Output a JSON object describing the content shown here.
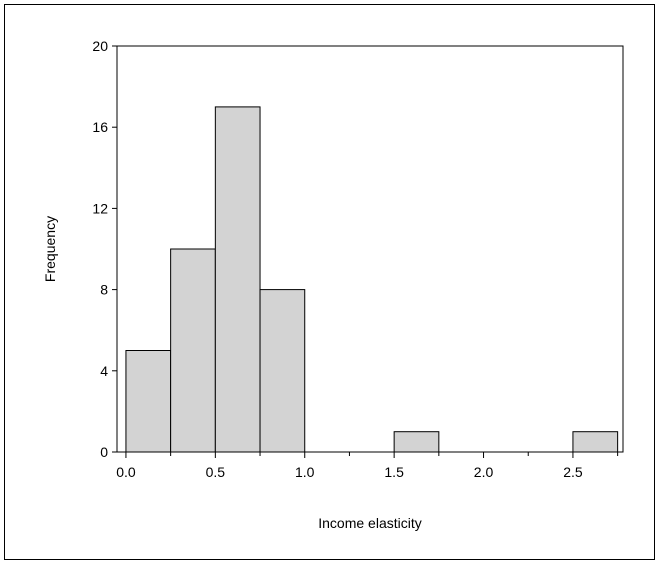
{
  "chart_data": {
    "type": "bar",
    "title": "",
    "xlabel": "Income elasticity",
    "ylabel": "Frequency",
    "bin_width": 0.25,
    "bins": [
      {
        "start": 0.0,
        "end": 0.25,
        "value": 5
      },
      {
        "start": 0.25,
        "end": 0.5,
        "value": 10
      },
      {
        "start": 0.5,
        "end": 0.75,
        "value": 17
      },
      {
        "start": 0.75,
        "end": 1.0,
        "value": 8
      },
      {
        "start": 1.0,
        "end": 1.25,
        "value": 0
      },
      {
        "start": 1.25,
        "end": 1.5,
        "value": 0
      },
      {
        "start": 1.5,
        "end": 1.75,
        "value": 1
      },
      {
        "start": 1.75,
        "end": 2.0,
        "value": 0
      },
      {
        "start": 2.0,
        "end": 2.25,
        "value": 0
      },
      {
        "start": 2.25,
        "end": 2.5,
        "value": 0
      },
      {
        "start": 2.5,
        "end": 2.75,
        "value": 1
      }
    ],
    "xlim": [
      -0.05,
      2.78
    ],
    "ylim": [
      0,
      20
    ],
    "x_ticks": [
      {
        "value": 0.0,
        "label": "0.0"
      },
      {
        "value": 0.5,
        "label": "0.5"
      },
      {
        "value": 1.0,
        "label": "1.0"
      },
      {
        "value": 1.5,
        "label": "1.5"
      },
      {
        "value": 2.0,
        "label": "2.0"
      },
      {
        "value": 2.5,
        "label": "2.5"
      }
    ],
    "x_minor_ticks": [
      0.25,
      0.75,
      1.25,
      1.75,
      2.25,
      2.75
    ],
    "y_ticks": [
      {
        "value": 0,
        "label": "0"
      },
      {
        "value": 4,
        "label": "4"
      },
      {
        "value": 8,
        "label": "8"
      },
      {
        "value": 12,
        "label": "12"
      },
      {
        "value": 16,
        "label": "16"
      },
      {
        "value": 20,
        "label": "20"
      }
    ],
    "grid": false,
    "legend": "none",
    "bar_fill": "#d3d3d3",
    "bar_stroke": "#000000"
  }
}
